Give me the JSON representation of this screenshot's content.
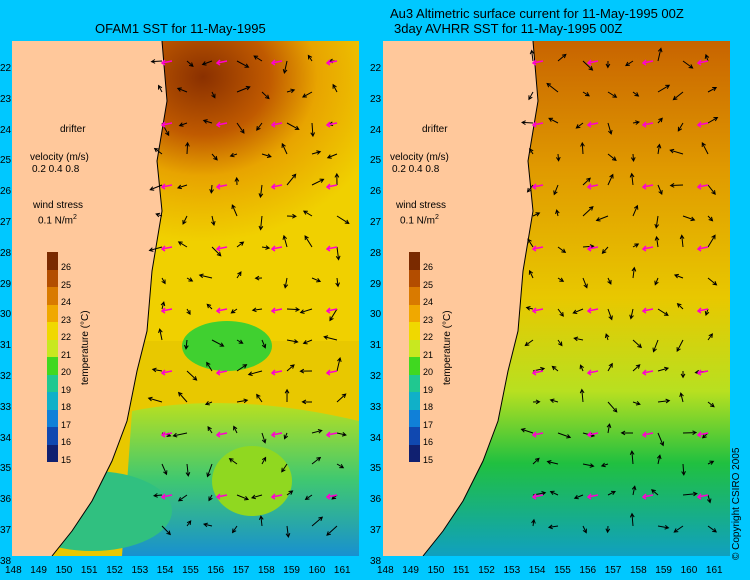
{
  "titles": {
    "left": "OFAM1 SST for 11-May-1995",
    "right_line1": "Au3 Altimetric surface current for 11-May-1995 00Z",
    "right_line2": "3day AVHRR SST for 11-May-1995 00Z"
  },
  "latitudes": [
    "22",
    "23",
    "24",
    "25",
    "26",
    "27",
    "28",
    "29",
    "30",
    "31",
    "32",
    "33",
    "34",
    "35",
    "36",
    "37",
    "38"
  ],
  "longitudes": [
    "148",
    "149",
    "150",
    "151",
    "152",
    "153",
    "154",
    "155",
    "156",
    "157",
    "158",
    "159",
    "160",
    "161"
  ],
  "legend": {
    "drifter": "drifter",
    "velocity_title": "velocity (m/s)",
    "velocity_values": "0.2 0.4 0.8",
    "wind_title": "wind stress",
    "wind_value": "0.1 N/m",
    "wind_sup": "2"
  },
  "colorbar": {
    "labels": [
      "26",
      "25",
      "24",
      "23",
      "22",
      "21",
      "20",
      "19",
      "18",
      "17",
      "16",
      "15"
    ],
    "title": "temperature (°C)",
    "colors": [
      "#7a2a00",
      "#b34d00",
      "#d97a00",
      "#f0a800",
      "#f0d800",
      "#c8e820",
      "#40d820",
      "#20c890",
      "#10b0c8",
      "#1080d8",
      "#1048b0",
      "#102070"
    ]
  },
  "copyright": "© Copyright CSIRO 2005",
  "colors": {
    "ocean": "#00c8ff",
    "land": "#ffc89b",
    "arrow": "#000000",
    "wind_arrow": "#ff00d0"
  }
}
